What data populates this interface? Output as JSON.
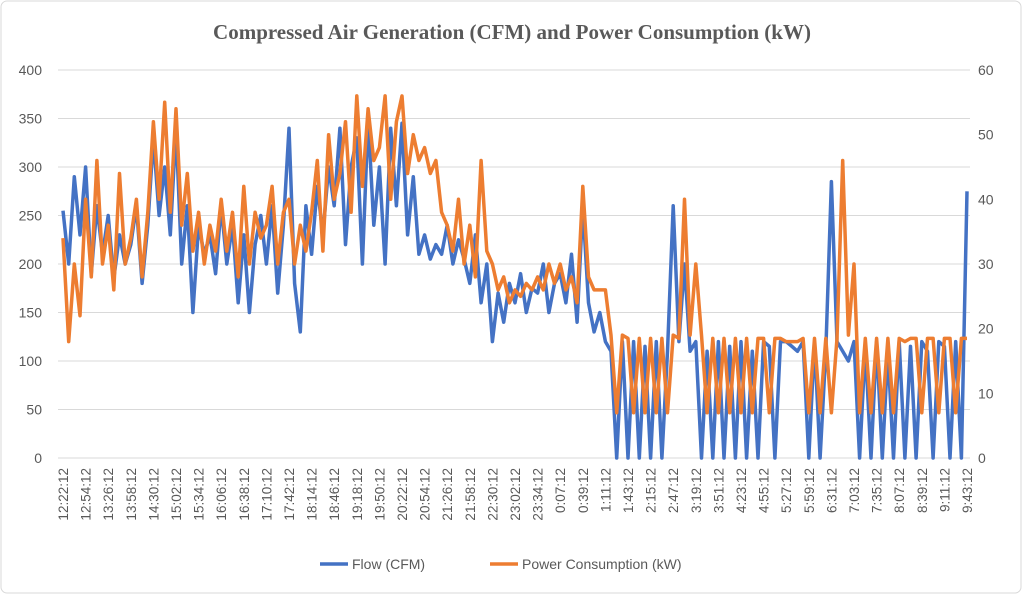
{
  "chart_data": {
    "type": "line",
    "title": "Compressed Air Generation (CFM) and Power Consumption (kW)",
    "x_tick_labels": [
      "12:22:12",
      "12:54:12",
      "13:26:12",
      "13:58:12",
      "14:30:12",
      "15:02:12",
      "15:34:12",
      "16:06:12",
      "16:38:12",
      "17:10:12",
      "17:42:12",
      "18:14:12",
      "18:46:12",
      "19:18:12",
      "19:50:12",
      "20:22:12",
      "20:54:12",
      "21:26:12",
      "21:58:12",
      "22:30:12",
      "23:02:12",
      "23:34:12",
      "0:07:12",
      "0:39:12",
      "1:11:12",
      "1:43:12",
      "2:15:12",
      "2:47:12",
      "3:19:12",
      "3:51:12",
      "4:23:12",
      "4:55:12",
      "5:27:12",
      "5:59:12",
      "6:31:12",
      "7:03:12",
      "7:35:12",
      "8:07:12",
      "8:39:12",
      "9:11:12",
      "9:43:12"
    ],
    "y_left": {
      "range": [
        0,
        400
      ],
      "ticks": [
        0,
        50,
        100,
        150,
        200,
        250,
        300,
        350,
        400
      ]
    },
    "y_right": {
      "range": [
        0,
        60
      ],
      "ticks": [
        0,
        10,
        20,
        30,
        40,
        50,
        60
      ]
    },
    "grid": true,
    "legend_position": "bottom",
    "series": [
      {
        "name": "Flow (CFM)",
        "axis": "left",
        "color": "#4472C4",
        "values": [
          255,
          200,
          290,
          230,
          300,
          190,
          260,
          210,
          250,
          185,
          230,
          200,
          220,
          260,
          180,
          240,
          330,
          250,
          300,
          230,
          340,
          200,
          260,
          150,
          240,
          210,
          230,
          190,
          260,
          200,
          240,
          160,
          230,
          150,
          220,
          250,
          200,
          260,
          170,
          240,
          340,
          180,
          130,
          260,
          210,
          280,
          230,
          300,
          260,
          340,
          220,
          300,
          330,
          200,
          350,
          240,
          300,
          200,
          340,
          260,
          345,
          230,
          290,
          210,
          230,
          205,
          220,
          210,
          240,
          200,
          225,
          205,
          180,
          230,
          160,
          200,
          120,
          170,
          140,
          180,
          160,
          190,
          150,
          175,
          170,
          200,
          150,
          180,
          190,
          160,
          210,
          140,
          260,
          160,
          130,
          150,
          120,
          110,
          0,
          120,
          0,
          120,
          0,
          115,
          0,
          120,
          0,
          110,
          260,
          120,
          200,
          110,
          120,
          0,
          110,
          0,
          120,
          0,
          115,
          0,
          120,
          0,
          110,
          0,
          120,
          115,
          0,
          120,
          120,
          115,
          110,
          120,
          0,
          120,
          0,
          110,
          285,
          120,
          110,
          100,
          120,
          0,
          115,
          0,
          120,
          0,
          110,
          0,
          120,
          0,
          115,
          0,
          120,
          110,
          0,
          120,
          115,
          0,
          120,
          0,
          275
        ]
      },
      {
        "name": "Power Consumption (kW)",
        "axis": "right",
        "color": "#ED7D31",
        "values": [
          34,
          18,
          30,
          22,
          40,
          28,
          46,
          30,
          36,
          26,
          44,
          30,
          34,
          40,
          28,
          38,
          52,
          40,
          55,
          38,
          54,
          36,
          44,
          32,
          38,
          30,
          36,
          32,
          40,
          32,
          38,
          28,
          42,
          30,
          38,
          34,
          36,
          42,
          30,
          38,
          40,
          30,
          36,
          32,
          38,
          46,
          32,
          50,
          40,
          44,
          52,
          38,
          56,
          42,
          54,
          46,
          48,
          56,
          40,
          52,
          56,
          44,
          50,
          46,
          48,
          44,
          46,
          38,
          36,
          32,
          40,
          30,
          36,
          28,
          46,
          32,
          30,
          26,
          28,
          24,
          26,
          25,
          27,
          26,
          28,
          26,
          30,
          27,
          30,
          26,
          28,
          24,
          42,
          28,
          26,
          26,
          26,
          19,
          7,
          19,
          18.5,
          7,
          18.5,
          7,
          18.5,
          7,
          18.5,
          7,
          19,
          18.5,
          40,
          19,
          30,
          19,
          7,
          18.5,
          7,
          18.5,
          7,
          18.5,
          7,
          18.5,
          7,
          18.5,
          18.5,
          7,
          18.5,
          18.5,
          18,
          18,
          18,
          18.5,
          7,
          18.5,
          7,
          18.5,
          7,
          18.5,
          46,
          19,
          30,
          7,
          18.5,
          7,
          18.5,
          7,
          18.5,
          7,
          18.5,
          18,
          18.5,
          18.5,
          7,
          18.5,
          18.5,
          7,
          18.5,
          18.5,
          7,
          18.5,
          18.5
        ]
      }
    ]
  }
}
